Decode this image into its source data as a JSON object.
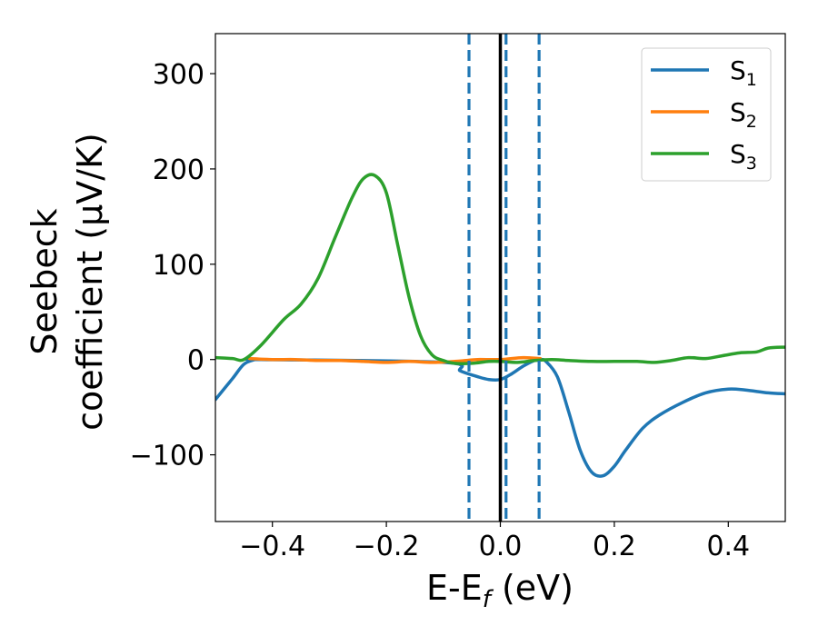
{
  "chart_data": {
    "type": "line",
    "xlabel": "E-E",
    "xlabel_sub": "f",
    "xlabel_unit": " (eV)",
    "ylabel_line1": "Seebeck",
    "ylabel_line2": "coefficient  (μV/K)",
    "xlim": [
      -0.5,
      0.5
    ],
    "ylim": [
      -170,
      342
    ],
    "xticks": [
      -0.4,
      -0.2,
      0.0,
      0.2,
      0.4
    ],
    "xtick_labels": [
      "−0.4",
      "−0.2",
      "0.0",
      "0.2",
      "0.4"
    ],
    "yticks": [
      -100,
      0,
      100,
      200,
      300
    ],
    "ytick_labels": [
      "−100",
      "0",
      "100",
      "200",
      "300"
    ],
    "legend_position": "top-right",
    "grid": false,
    "series": [
      {
        "name": "S",
        "subscript": "1",
        "color": "#1f77b4",
        "x": [
          -0.5,
          -0.47,
          -0.45,
          -0.43,
          -0.42,
          -0.1,
          -0.07,
          -0.04,
          -0.02,
          0.0,
          0.02,
          0.04,
          0.06,
          0.07,
          0.08,
          0.1,
          0.12,
          0.14,
          0.16,
          0.18,
          0.2,
          0.22,
          0.25,
          0.28,
          0.32,
          0.36,
          0.4,
          0.43,
          0.47,
          0.5
        ],
        "y": [
          -42,
          -20,
          -5,
          0,
          0,
          -3,
          -12,
          -18,
          -21,
          -21,
          -15,
          -7,
          -1,
          0,
          -2,
          -18,
          -55,
          -95,
          -118,
          -122,
          -112,
          -95,
          -72,
          -58,
          -45,
          -35,
          -31,
          -32,
          -35,
          -36
        ]
      },
      {
        "name": "S",
        "subscript": "2",
        "color": "#ff7f0e",
        "x": [
          -0.44,
          -0.4,
          -0.36,
          -0.32,
          -0.28,
          -0.24,
          -0.2,
          -0.16,
          -0.12,
          -0.08,
          -0.06,
          -0.04,
          0.0,
          0.04,
          0.07
        ],
        "y": [
          1,
          0,
          0,
          -1,
          -1,
          -2,
          -3,
          -2,
          -3,
          -2,
          -1,
          0,
          0,
          2,
          1
        ]
      },
      {
        "name": "S",
        "subscript": "3",
        "color": "#2ca02c",
        "x": [
          -0.5,
          -0.47,
          -0.45,
          -0.42,
          -0.38,
          -0.35,
          -0.32,
          -0.29,
          -0.26,
          -0.24,
          -0.22,
          -0.2,
          -0.18,
          -0.16,
          -0.14,
          -0.12,
          -0.1,
          -0.08,
          -0.05,
          -0.02,
          0.0,
          0.03,
          0.06,
          0.09,
          0.12,
          0.16,
          0.2,
          0.24,
          0.27,
          0.3,
          0.33,
          0.36,
          0.39,
          0.42,
          0.45,
          0.47,
          0.5
        ],
        "y": [
          2,
          1,
          0,
          15,
          42,
          58,
          85,
          128,
          170,
          190,
          193,
          175,
          120,
          65,
          25,
          5,
          -1,
          -4,
          -4,
          -2,
          -2,
          -3,
          -1,
          0,
          -1,
          -2,
          -2,
          -2,
          -3,
          -1,
          2,
          1,
          4,
          7,
          8,
          12,
          13
        ]
      }
    ],
    "vlines": [
      {
        "x": -0.055,
        "color": "#1f77b4",
        "style": "dashed"
      },
      {
        "x": 0.0,
        "color": "#000000",
        "style": "solid"
      },
      {
        "x": 0.01,
        "color": "#1f77b4",
        "style": "dashed"
      },
      {
        "x": 0.068,
        "color": "#1f77b4",
        "style": "dashed"
      }
    ]
  }
}
